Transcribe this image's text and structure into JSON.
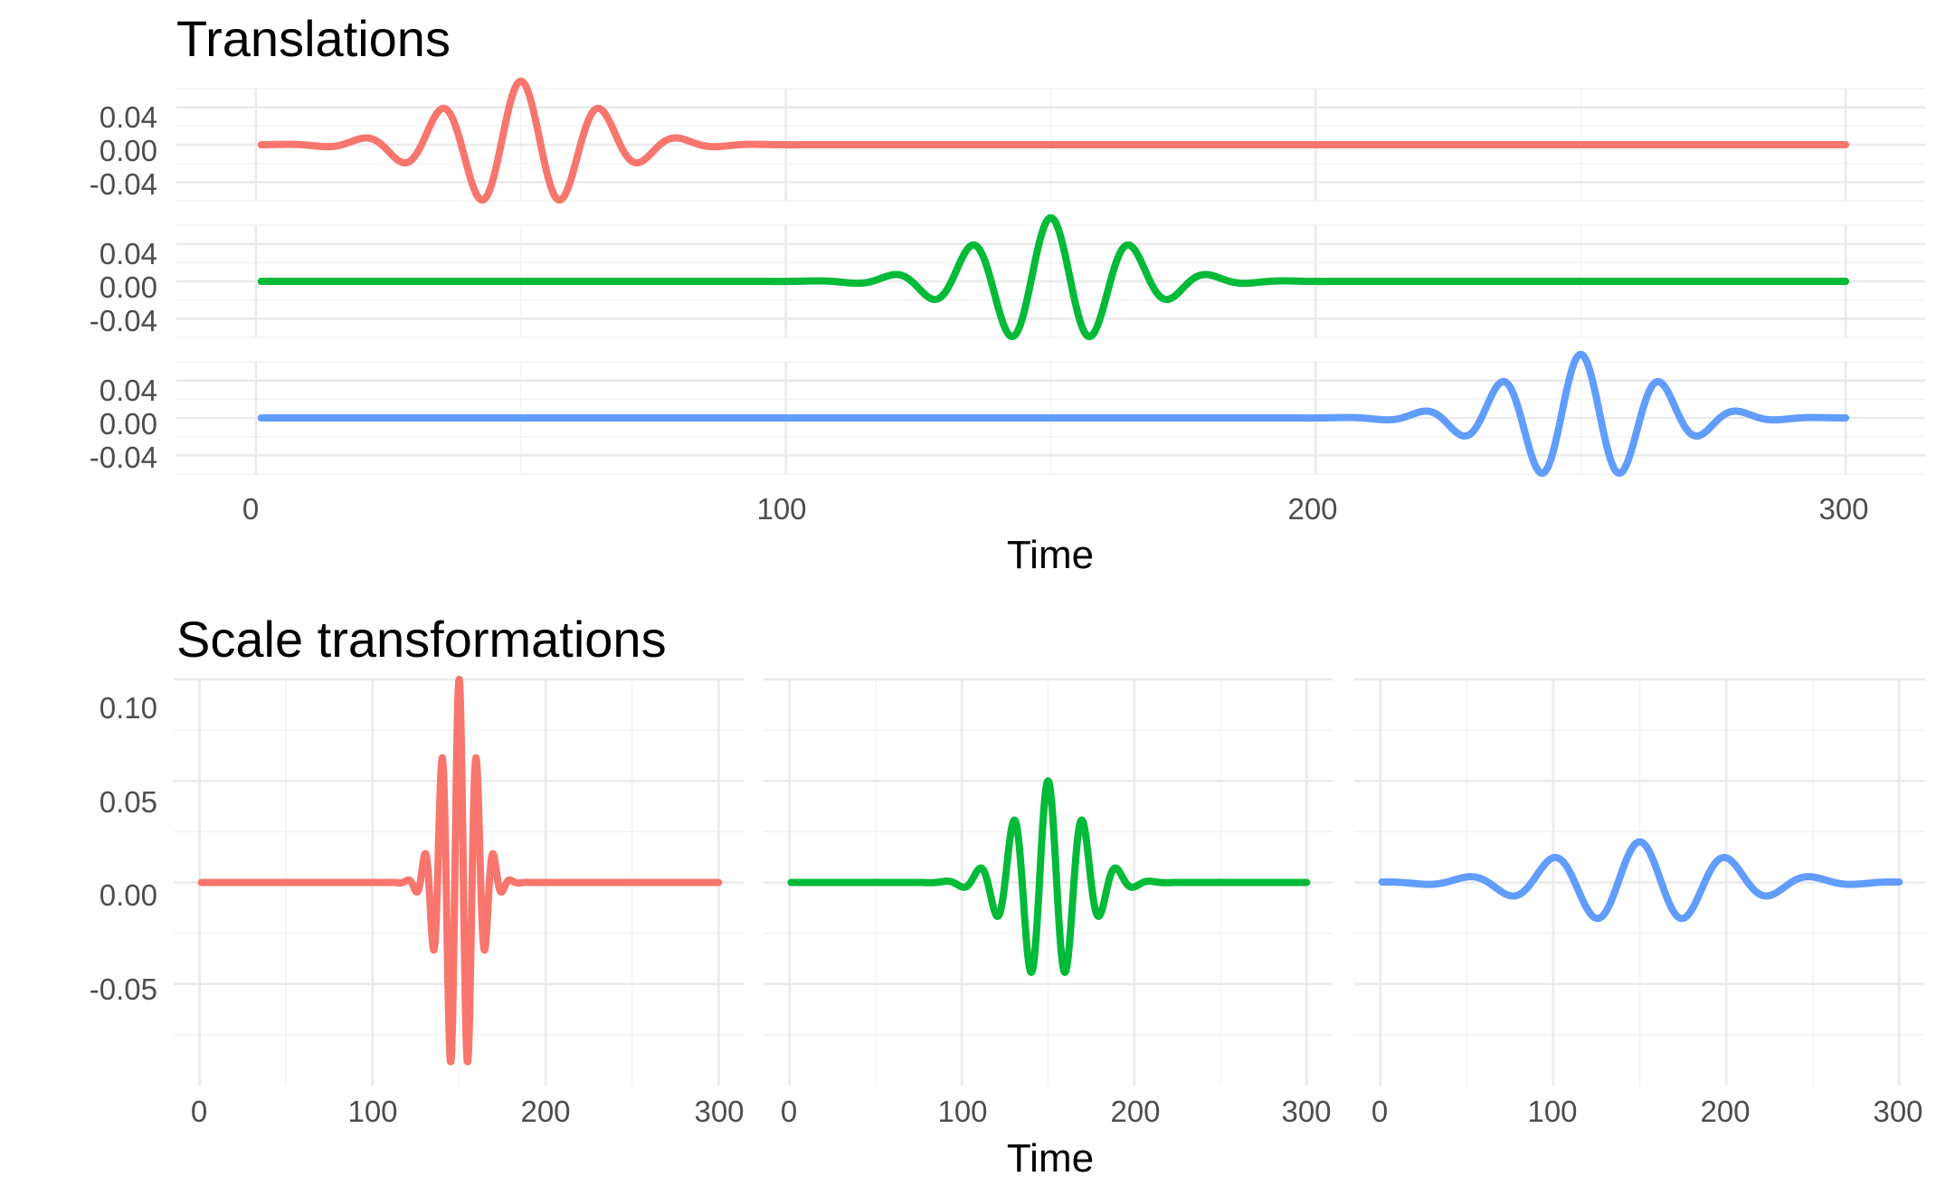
{
  "chart_data": [
    {
      "type": "line",
      "title": "Translations",
      "xlabel": "Time",
      "ylabel": "",
      "xlim": [
        -15,
        315
      ],
      "ylim": [
        -0.06,
        0.06
      ],
      "x_ticks": [
        0,
        100,
        200,
        300
      ],
      "x_tick_labels": [
        "0",
        "100",
        "200",
        "300"
      ],
      "y_ticks": [
        -0.04,
        0.0,
        0.04
      ],
      "y_tick_labels": [
        "-0.04",
        "0.00",
        "0.04"
      ],
      "grid": true,
      "legend": "none",
      "layout": "stacked-rows",
      "series": [
        {
          "color": "#F8766D",
          "waveform": "gabor-wavelet",
          "center": 50,
          "amplitude": 0.068,
          "period": 15,
          "envelope_width": 14,
          "x_range": [
            1,
            300
          ]
        },
        {
          "color": "#00BA38",
          "waveform": "gabor-wavelet",
          "center": 150,
          "amplitude": 0.068,
          "period": 15,
          "envelope_width": 14,
          "x_range": [
            1,
            300
          ]
        },
        {
          "color": "#619CFF",
          "waveform": "gabor-wavelet",
          "center": 250,
          "amplitude": 0.068,
          "period": 15,
          "envelope_width": 14,
          "x_range": [
            1,
            300
          ]
        }
      ]
    },
    {
      "type": "line",
      "title": "Scale transformations",
      "xlabel": "Time",
      "ylabel": "",
      "xlim": [
        -15,
        315
      ],
      "ylim": [
        -0.1,
        0.1
      ],
      "x_ticks": [
        0,
        100,
        200,
        300
      ],
      "x_tick_labels": [
        "0",
        "100",
        "200",
        "300"
      ],
      "y_ticks": [
        -0.05,
        0.0,
        0.05,
        0.1
      ],
      "y_tick_labels": [
        "-0.05",
        "0.00",
        "0.05",
        "0.10"
      ],
      "grid": true,
      "legend": "none",
      "layout": "side-by-side-columns",
      "series": [
        {
          "color": "#F8766D",
          "waveform": "gabor-wavelet",
          "center": 150,
          "amplitude": 0.1,
          "period": 10,
          "envelope_width": 10,
          "x_range": [
            1,
            300
          ]
        },
        {
          "color": "#00BA38",
          "waveform": "gabor-wavelet",
          "center": 150,
          "amplitude": 0.05,
          "period": 20,
          "envelope_width": 20,
          "x_range": [
            1,
            300
          ]
        },
        {
          "color": "#619CFF",
          "waveform": "gabor-wavelet",
          "center": 150,
          "amplitude": 0.02,
          "period": 50,
          "envelope_width": 50,
          "x_range": [
            1,
            300
          ]
        }
      ]
    }
  ]
}
